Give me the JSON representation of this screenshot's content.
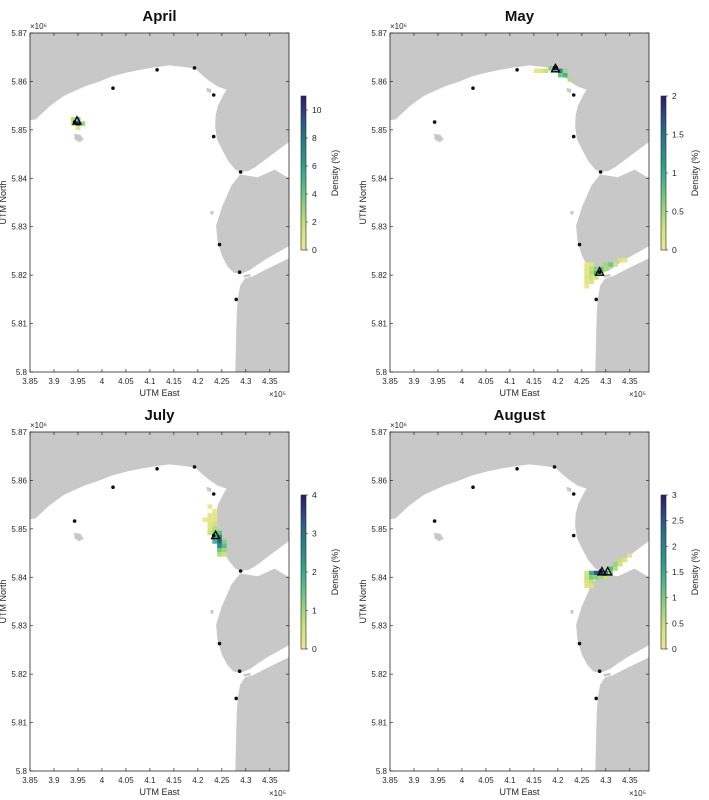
{
  "colors": {
    "land": "#c8c8c8",
    "water": "#ffffff",
    "axis": "#262626",
    "station": "#111111",
    "colormap": [
      "#f2e78f",
      "#cfe27b",
      "#8fd27a",
      "#4fb987",
      "#2a9a8a",
      "#2a7a8c",
      "#2d4f87",
      "#2b1b6a"
    ]
  },
  "chart_data": [
    {
      "type": "heatmap",
      "title": "April",
      "xlabel": "UTM East",
      "ylabel": "UTM North",
      "xlim": [
        385000,
        439000
      ],
      "ylim": [
        5800000,
        5870000
      ],
      "xticks": [
        "3.85",
        "3.9",
        "3.95",
        "4",
        "4.05",
        "4.1",
        "4.15",
        "4.2",
        "4.25",
        "4.3",
        "4.35"
      ],
      "yticks": [
        "5.8",
        "5.81",
        "5.82",
        "5.83",
        "5.84",
        "5.85",
        "5.86",
        "5.87"
      ],
      "x_exponent": "×10⁵",
      "y_exponent": "×10⁶",
      "colorbar": {
        "label": "Density (%)",
        "max": 11,
        "ticks": [
          "0",
          "2",
          "4",
          "6",
          "8",
          "10"
        ],
        "tick_values": [
          0,
          2,
          4,
          6,
          8,
          10
        ]
      },
      "release_points": [
        [
          394800,
          5851800
        ]
      ],
      "density_cells": [
        [
          394000,
          5852200,
          2
        ],
        [
          395000,
          5852200,
          4
        ],
        [
          394000,
          5851300,
          1.5
        ],
        [
          395000,
          5851300,
          10.5
        ],
        [
          396000,
          5851300,
          3
        ],
        [
          395000,
          5850400,
          0.5
        ]
      ]
    },
    {
      "type": "heatmap",
      "title": "May",
      "xlabel": "UTM East",
      "ylabel": "UTM North",
      "xlim": [
        385000,
        439000
      ],
      "ylim": [
        5800000,
        5870000
      ],
      "xticks": [
        "3.85",
        "3.9",
        "3.95",
        "4",
        "4.05",
        "4.1",
        "4.15",
        "4.2",
        "4.25",
        "4.3",
        "4.35"
      ],
      "yticks": [
        "5.8",
        "5.81",
        "5.82",
        "5.83",
        "5.84",
        "5.85",
        "5.86",
        "5.87"
      ],
      "x_exponent": "×10⁵",
      "y_exponent": "×10⁶",
      "colorbar": {
        "label": "Density (%)",
        "max": 2,
        "ticks": [
          "0",
          "0.5",
          "1",
          "1.5",
          "2"
        ],
        "tick_values": [
          0,
          0.5,
          1,
          1.5,
          2
        ]
      },
      "release_points": [
        [
          419500,
          5862600
        ],
        [
          428700,
          5820600
        ]
      ],
      "density_cells": [
        [
          415500,
          5862200,
          0.1
        ],
        [
          416500,
          5862200,
          0.15
        ],
        [
          417500,
          5862200,
          0.3
        ],
        [
          418500,
          5862700,
          0.6
        ],
        [
          419500,
          5862700,
          1.9
        ],
        [
          420500,
          5862200,
          1.3
        ],
        [
          421500,
          5861300,
          0.9
        ],
        [
          422500,
          5860400,
          0.4
        ],
        [
          421500,
          5862200,
          0.5
        ],
        [
          420500,
          5861300,
          0.7
        ],
        [
          426000,
          5822200,
          0.1
        ],
        [
          427000,
          5822200,
          0.2
        ],
        [
          426000,
          5821300,
          0.1
        ],
        [
          427000,
          5821300,
          0.35
        ],
        [
          428000,
          5821300,
          0.6
        ],
        [
          429000,
          5821300,
          0.8
        ],
        [
          430000,
          5822200,
          0.5
        ],
        [
          431000,
          5822200,
          0.7
        ],
        [
          432000,
          5822200,
          0.3
        ],
        [
          433000,
          5823100,
          0.2
        ],
        [
          434000,
          5823100,
          0.1
        ],
        [
          426000,
          5820400,
          0.1
        ],
        [
          427000,
          5820400,
          0.4
        ],
        [
          428000,
          5820400,
          0.9
        ],
        [
          429000,
          5820400,
          0.5
        ],
        [
          426000,
          5819500,
          0.15
        ],
        [
          427000,
          5819500,
          0.3
        ],
        [
          428000,
          5819500,
          0.25
        ],
        [
          426000,
          5818600,
          0.1
        ],
        [
          427000,
          5818600,
          0.2
        ],
        [
          426000,
          5817700,
          0.05
        ],
        [
          430000,
          5821300,
          0.45
        ]
      ]
    },
    {
      "type": "heatmap",
      "title": "July",
      "xlabel": "UTM East",
      "ylabel": "UTM North",
      "xlim": [
        385000,
        439000
      ],
      "ylim": [
        5800000,
        5870000
      ],
      "xticks": [
        "3.85",
        "3.9",
        "3.95",
        "4",
        "4.05",
        "4.1",
        "4.15",
        "4.2",
        "4.25",
        "4.3",
        "4.35"
      ],
      "yticks": [
        "5.8",
        "5.81",
        "5.82",
        "5.83",
        "5.84",
        "5.85",
        "5.86",
        "5.87"
      ],
      "x_exponent": "×10⁵",
      "y_exponent": "×10⁶",
      "colorbar": {
        "label": "Density (%)",
        "max": 4,
        "ticks": [
          "0",
          "1",
          "2",
          "3",
          "4"
        ],
        "tick_values": [
          0,
          1,
          2,
          3,
          4
        ]
      },
      "release_points": [
        [
          423700,
          5848600
        ]
      ],
      "density_cells": [
        [
          422500,
          5854600,
          0.1
        ],
        [
          423500,
          5853700,
          0.1
        ],
        [
          422500,
          5852800,
          0.15
        ],
        [
          423500,
          5852800,
          0.2
        ],
        [
          421500,
          5851900,
          0.1
        ],
        [
          422500,
          5851900,
          0.2
        ],
        [
          423500,
          5851900,
          0.3
        ],
        [
          422500,
          5851000,
          0.3
        ],
        [
          423500,
          5851000,
          0.5
        ],
        [
          422500,
          5850100,
          0.4
        ],
        [
          423500,
          5850100,
          0.8
        ],
        [
          422500,
          5849200,
          0.6
        ],
        [
          423500,
          5849200,
          1.2
        ],
        [
          424500,
          5849200,
          1.5
        ],
        [
          423500,
          5848300,
          2
        ],
        [
          424500,
          5848300,
          2.8
        ],
        [
          423500,
          5847400,
          1.8
        ],
        [
          424500,
          5847400,
          3.2
        ],
        [
          425500,
          5847400,
          1.2
        ],
        [
          424500,
          5846500,
          2.5
        ],
        [
          425500,
          5846500,
          1.6
        ],
        [
          424500,
          5845600,
          1.4
        ],
        [
          425500,
          5845600,
          1.0
        ],
        [
          424500,
          5844700,
          0.8
        ],
        [
          425500,
          5844700,
          0.6
        ]
      ]
    },
    {
      "type": "heatmap",
      "title": "August",
      "xlabel": "UTM East",
      "ylabel": "UTM North",
      "xlim": [
        385000,
        439000
      ],
      "ylim": [
        5800000,
        5870000
      ],
      "xticks": [
        "3.85",
        "3.9",
        "3.95",
        "4",
        "4.05",
        "4.1",
        "4.15",
        "4.2",
        "4.25",
        "4.3",
        "4.35"
      ],
      "yticks": [
        "5.8",
        "5.81",
        "5.82",
        "5.83",
        "5.84",
        "5.85",
        "5.86",
        "5.87"
      ],
      "x_exponent": "×10⁵",
      "y_exponent": "×10⁶",
      "colorbar": {
        "label": "Density (%)",
        "max": 3,
        "ticks": [
          "0",
          "0.5",
          "1",
          "1.5",
          "2",
          "2.5",
          "3"
        ],
        "tick_values": [
          0,
          0.5,
          1,
          1.5,
          2,
          2.5,
          3
        ]
      },
      "release_points": [
        [
          429200,
          5841100
        ],
        [
          430400,
          5841100
        ]
      ],
      "density_cells": [
        [
          426000,
          5840900,
          0.3
        ],
        [
          427000,
          5840900,
          1.5
        ],
        [
          428000,
          5840900,
          2.5
        ],
        [
          429000,
          5840900,
          2.9
        ],
        [
          430000,
          5840900,
          2.0
        ],
        [
          431000,
          5841800,
          1.2
        ],
        [
          432000,
          5842700,
          0.8
        ],
        [
          433000,
          5843600,
          0.5
        ],
        [
          434000,
          5843600,
          0.3
        ],
        [
          426000,
          5840000,
          0.4
        ],
        [
          427000,
          5840000,
          1.0
        ],
        [
          428000,
          5840000,
          0.9
        ],
        [
          426000,
          5839100,
          0.3
        ],
        [
          427000,
          5839100,
          0.5
        ],
        [
          426000,
          5838200,
          0.2
        ],
        [
          427000,
          5838200,
          0.3
        ],
        [
          429000,
          5840000,
          0.7
        ],
        [
          430000,
          5840000,
          0.5
        ],
        [
          431000,
          5840900,
          0.9
        ],
        [
          432000,
          5841800,
          0.6
        ],
        [
          433000,
          5842700,
          0.4
        ],
        [
          435000,
          5844500,
          0.2
        ]
      ]
    }
  ]
}
